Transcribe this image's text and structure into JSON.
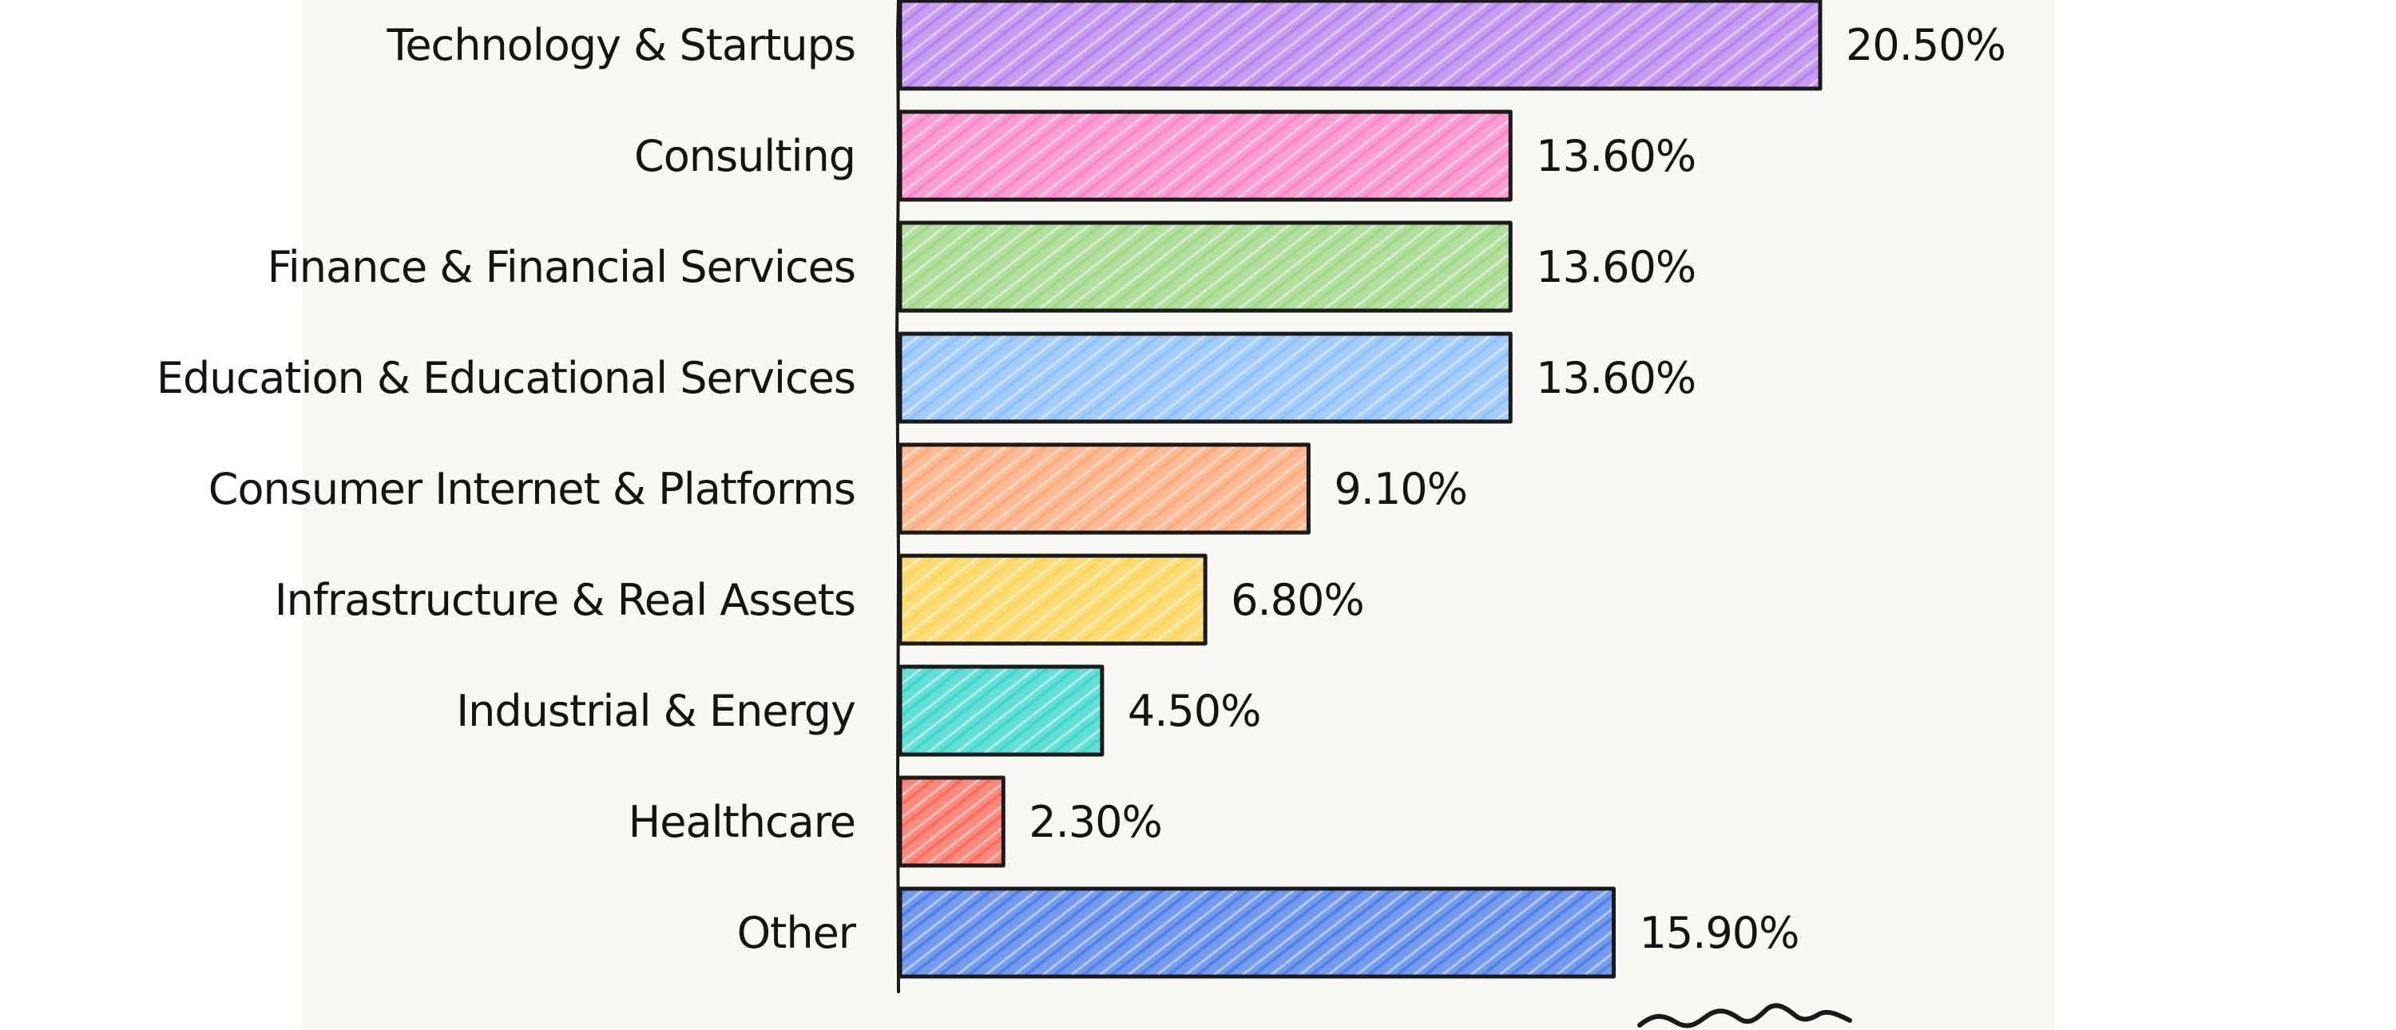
{
  "chart_data": {
    "type": "bar",
    "orientation": "horizontal",
    "categories": [
      "Technology & Startups",
      "Consulting",
      "Finance & Financial Services",
      "Education & Educational Services",
      "Consumer Internet & Platforms",
      "Infrastructure & Real Assets",
      "Industrial & Energy",
      "Healthcare",
      "Other"
    ],
    "values": [
      20.5,
      13.6,
      13.6,
      13.6,
      9.1,
      6.8,
      4.5,
      2.3,
      15.9
    ],
    "value_labels": [
      "20.50%",
      "13.60%",
      "13.60%",
      "13.60%",
      "9.10%",
      "6.80%",
      "4.50%",
      "2.30%",
      "15.90%"
    ],
    "colors": [
      "#b784ee",
      "#fb86c9",
      "#9fd986",
      "#8cc3fb",
      "#ffab7a",
      "#fdd658",
      "#3bd9ce",
      "#fd6d5d",
      "#4f83ea"
    ],
    "xlim": [
      0,
      20.5
    ],
    "title": "",
    "xlabel": "",
    "ylabel": "",
    "grid": false,
    "legend": "none"
  }
}
